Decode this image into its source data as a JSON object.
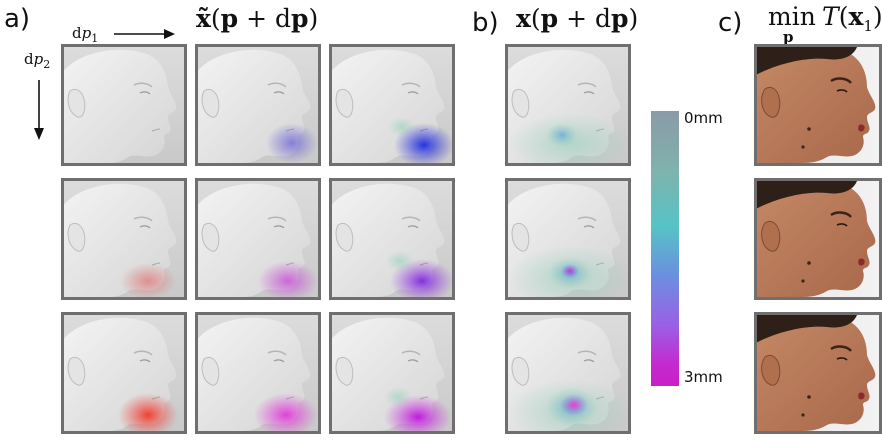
{
  "panels": {
    "a": {
      "label": "a)",
      "title_tilde": "x̃",
      "title_expr_open": "(",
      "title_p": "p",
      "title_plus": " + d",
      "title_p2": "p",
      "title_close": ")",
      "axis_x_prefix": "d",
      "axis_x_var": "p",
      "axis_x_sub": "1",
      "axis_y_prefix": "d",
      "axis_y_var": "p",
      "axis_y_sub": "2"
    },
    "b": {
      "label": "b)",
      "title_x": "x",
      "title_open": "(",
      "title_p": "p",
      "title_plus": " + d",
      "title_p2": "p",
      "title_close": ")"
    },
    "c": {
      "label": "c)",
      "title_min": "min",
      "title_sub": "p",
      "title_T": "T",
      "title_open": "(",
      "title_x": "x",
      "title_x_sub": "1",
      "title_close": ")"
    }
  },
  "colorbar": {
    "top_label": "0mm",
    "bottom_label": "3mm",
    "colors": [
      "#8b9aa7",
      "#56c3c6",
      "#6b8fe0",
      "#c91fc7"
    ]
  },
  "grid_a_overlays": [
    [
      "none",
      "blue-light",
      "blue-strong"
    ],
    [
      "red-light",
      "magenta-light",
      "purple"
    ],
    [
      "red-strong",
      "magenta-strong",
      "magenta-violet"
    ]
  ],
  "grid_b_overlays": [
    "cyan-light",
    "magenta-spot",
    "magenta-blob"
  ]
}
